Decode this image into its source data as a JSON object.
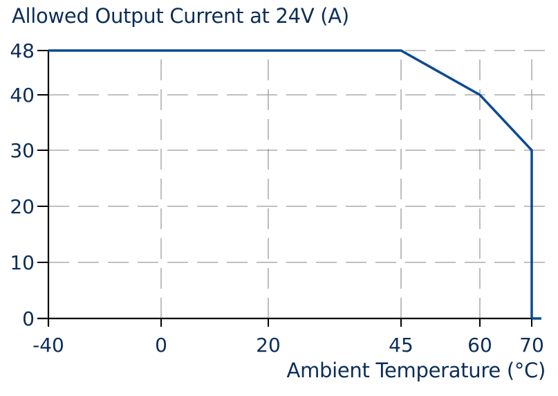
{
  "chart_data": {
    "type": "line",
    "title": "Allowed Output Current at 24V (A)",
    "xlabel": "Ambient Temperature (°C)",
    "ylabel": "Allowed Output Current at 24V (A)",
    "x_ticks": [
      "-40",
      "0",
      "20",
      "45",
      "60",
      "70"
    ],
    "y_ticks": [
      "0",
      "10",
      "20",
      "30",
      "40",
      "48"
    ],
    "xlim": [
      -40,
      70
    ],
    "ylim": [
      0,
      48
    ],
    "grid": "dashed",
    "legend": null,
    "series": [
      {
        "name": "Allowed Output Current",
        "x": [
          -40,
          45,
          60,
          70,
          70
        ],
        "values": [
          48,
          48,
          40,
          30,
          0
        ]
      }
    ],
    "colors": {
      "line": "#0a4a96",
      "text": "#0b2d5a",
      "grid": "#9a9a9a",
      "axis": "#000000"
    }
  }
}
